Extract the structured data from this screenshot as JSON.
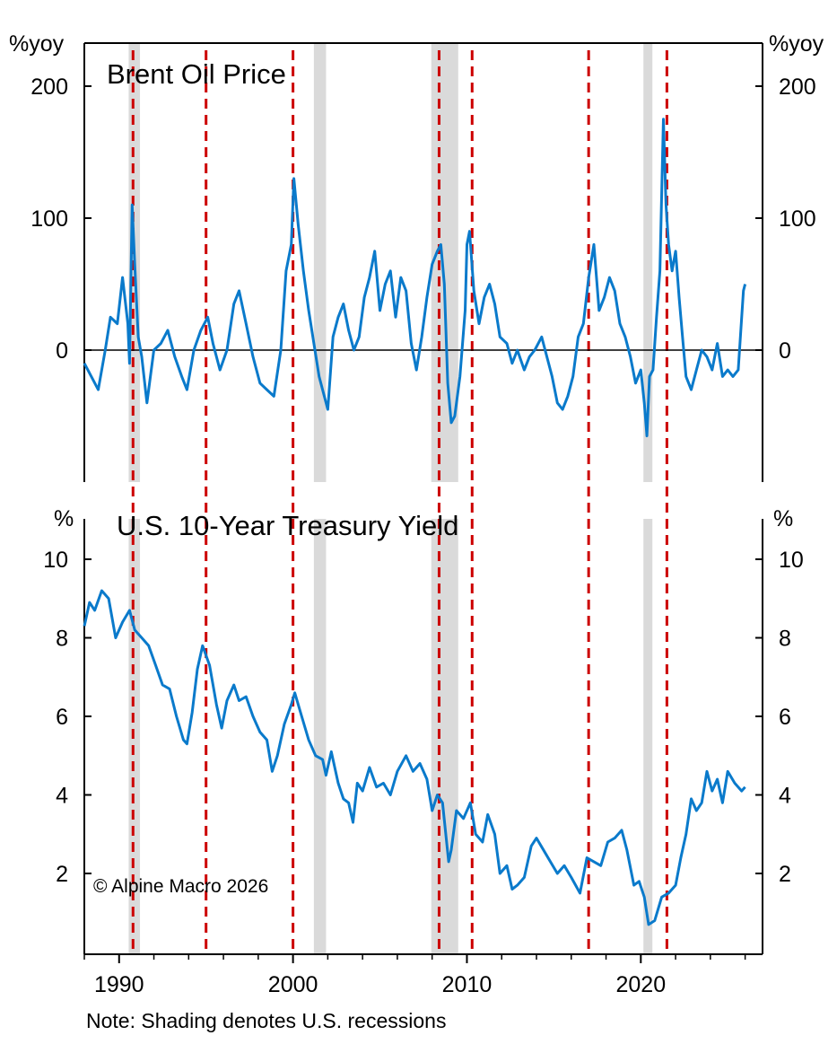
{
  "chart_data": [
    {
      "type": "line",
      "title": "Brent Oil Price",
      "unit_left": "%yoy",
      "unit_right": "%yoy",
      "ylim": [
        -100,
        230
      ],
      "yticks": [
        0,
        100,
        200
      ],
      "zero_line": true,
      "series": [
        {
          "name": "",
          "color": "#0a7acb",
          "x": [
            1988.0,
            1988.4,
            1988.8,
            1989.2,
            1989.5,
            1989.9,
            1990.2,
            1990.5,
            1990.6,
            1990.75,
            1990.9,
            1991.1,
            1991.3,
            1991.6,
            1992.0,
            1992.4,
            1992.8,
            1993.2,
            1993.6,
            1993.9,
            1994.3,
            1994.7,
            1995.1,
            1995.4,
            1995.8,
            1996.2,
            1996.6,
            1996.9,
            1997.3,
            1997.7,
            1998.1,
            1998.5,
            1998.9,
            1999.3,
            1999.6,
            1999.9,
            2000.05,
            2000.3,
            2000.6,
            2000.9,
            2001.2,
            2001.5,
            2001.8,
            2002.0,
            2002.3,
            2002.6,
            2002.9,
            2003.2,
            2003.5,
            2003.8,
            2004.1,
            2004.4,
            2004.7,
            2005.0,
            2005.3,
            2005.6,
            2005.9,
            2006.2,
            2006.5,
            2006.8,
            2007.1,
            2007.4,
            2007.7,
            2008.0,
            2008.3,
            2008.5,
            2008.7,
            2008.9,
            2009.1,
            2009.3,
            2009.6,
            2009.9,
            2010.0,
            2010.15,
            2010.4,
            2010.7,
            2011.0,
            2011.3,
            2011.6,
            2011.9,
            2012.3,
            2012.6,
            2012.9,
            2013.3,
            2013.6,
            2013.9,
            2014.3,
            2014.6,
            2014.9,
            2015.2,
            2015.5,
            2015.8,
            2016.1,
            2016.4,
            2016.7,
            2017.0,
            2017.3,
            2017.6,
            2017.9,
            2018.2,
            2018.5,
            2018.8,
            2019.1,
            2019.4,
            2019.7,
            2020.0,
            2020.2,
            2020.35,
            2020.5,
            2020.7,
            2020.9,
            2021.1,
            2021.3,
            2021.45,
            2021.6,
            2021.8,
            2022.0,
            2022.2,
            2022.4,
            2022.6,
            2022.9,
            2023.2,
            2023.5,
            2023.8,
            2024.1,
            2024.4,
            2024.7,
            2025.0,
            2025.3,
            2025.6,
            2025.9,
            2026.0
          ],
          "values": [
            -10,
            -20,
            -30,
            0,
            25,
            20,
            55,
            20,
            -10,
            110,
            65,
            10,
            -5,
            -40,
            0,
            5,
            15,
            -5,
            -20,
            -30,
            0,
            15,
            25,
            5,
            -15,
            0,
            35,
            45,
            20,
            -5,
            -25,
            -30,
            -35,
            0,
            60,
            80,
            130,
            95,
            60,
            30,
            5,
            -20,
            -35,
            -45,
            10,
            25,
            35,
            15,
            0,
            10,
            40,
            55,
            75,
            30,
            50,
            60,
            25,
            55,
            45,
            5,
            -15,
            10,
            40,
            65,
            75,
            80,
            50,
            -25,
            -55,
            -50,
            -20,
            30,
            80,
            90,
            45,
            20,
            40,
            50,
            35,
            10,
            5,
            -10,
            0,
            -15,
            -5,
            0,
            10,
            -5,
            -20,
            -40,
            -45,
            -35,
            -20,
            10,
            20,
            55,
            80,
            30,
            40,
            55,
            45,
            20,
            10,
            -5,
            -25,
            -15,
            -40,
            -65,
            -20,
            -15,
            25,
            60,
            175,
            110,
            80,
            60,
            75,
            40,
            10,
            -20,
            -30,
            -15,
            0,
            -5,
            -15,
            5,
            -20,
            -15,
            -20,
            -15,
            45,
            50
          ]
        }
      ]
    },
    {
      "type": "line",
      "title": "U.S. 10-Year Treasury Yield",
      "unit_left": "%",
      "unit_right": "%",
      "ylim": [
        0,
        11
      ],
      "yticks": [
        2,
        4,
        6,
        8,
        10
      ],
      "xlim": [
        1988,
        2027
      ],
      "xticks": [
        1990,
        2000,
        2010,
        2020
      ],
      "series": [
        {
          "name": "",
          "color": "#0a7acb",
          "x": [
            1988.0,
            1988.3,
            1988.6,
            1989.0,
            1989.4,
            1989.8,
            1990.2,
            1990.6,
            1990.9,
            1991.3,
            1991.7,
            1992.1,
            1992.5,
            1992.9,
            1993.3,
            1993.7,
            1993.9,
            1994.2,
            1994.5,
            1994.8,
            1995.2,
            1995.6,
            1995.9,
            1996.2,
            1996.6,
            1996.9,
            1997.3,
            1997.7,
            1998.1,
            1998.5,
            1998.8,
            1999.1,
            1999.5,
            1999.9,
            2000.1,
            2000.5,
            2000.9,
            2001.3,
            2001.7,
            2001.9,
            2002.2,
            2002.6,
            2002.9,
            2003.2,
            2003.45,
            2003.7,
            2004.0,
            2004.4,
            2004.8,
            2005.2,
            2005.6,
            2006.0,
            2006.5,
            2006.9,
            2007.3,
            2007.7,
            2008.0,
            2008.3,
            2008.6,
            2008.95,
            2009.1,
            2009.4,
            2009.8,
            2010.2,
            2010.5,
            2010.9,
            2011.2,
            2011.6,
            2011.9,
            2012.3,
            2012.6,
            2012.9,
            2013.3,
            2013.7,
            2014.0,
            2014.4,
            2014.8,
            2015.2,
            2015.6,
            2016.0,
            2016.5,
            2016.9,
            2017.3,
            2017.7,
            2018.1,
            2018.5,
            2018.9,
            2019.2,
            2019.6,
            2019.9,
            2020.2,
            2020.45,
            2020.8,
            2021.2,
            2021.6,
            2022.0,
            2022.3,
            2022.6,
            2022.9,
            2023.2,
            2023.5,
            2023.8,
            2024.1,
            2024.4,
            2024.7,
            2025.0,
            2025.4,
            2025.8,
            2026.0
          ],
          "values": [
            8.3,
            8.9,
            8.7,
            9.2,
            9.0,
            8.0,
            8.4,
            8.7,
            8.2,
            8.0,
            7.8,
            7.3,
            6.8,
            6.7,
            6.0,
            5.4,
            5.3,
            6.1,
            7.2,
            7.8,
            7.3,
            6.3,
            5.7,
            6.4,
            6.8,
            6.4,
            6.5,
            6.0,
            5.6,
            5.4,
            4.6,
            5.0,
            5.8,
            6.3,
            6.6,
            6.0,
            5.4,
            5.0,
            4.9,
            4.5,
            5.1,
            4.3,
            3.9,
            3.8,
            3.3,
            4.3,
            4.1,
            4.7,
            4.2,
            4.3,
            4.0,
            4.6,
            5.0,
            4.6,
            4.8,
            4.4,
            3.6,
            4.0,
            3.8,
            2.3,
            2.6,
            3.6,
            3.4,
            3.8,
            3.0,
            2.8,
            3.5,
            3.0,
            2.0,
            2.2,
            1.6,
            1.7,
            1.9,
            2.7,
            2.9,
            2.6,
            2.3,
            2.0,
            2.2,
            1.9,
            1.5,
            2.4,
            2.3,
            2.2,
            2.8,
            2.9,
            3.1,
            2.6,
            1.7,
            1.8,
            1.4,
            0.7,
            0.8,
            1.4,
            1.5,
            1.7,
            2.4,
            3.0,
            3.9,
            3.6,
            3.8,
            4.6,
            4.1,
            4.4,
            3.8,
            4.6,
            4.3,
            4.1,
            4.2
          ]
        }
      ]
    }
  ],
  "shared": {
    "recessions": [
      [
        1990.55,
        1991.2
      ],
      [
        2001.2,
        2001.9
      ],
      [
        2007.95,
        2009.5
      ],
      [
        2020.15,
        2020.4
      ]
    ],
    "red_lines": [
      1990.8,
      1995.0,
      2000.0,
      2008.4,
      2010.3,
      2017.0,
      2021.5
    ],
    "recession_color": "#dadada",
    "red_line_color": "#cc0000"
  },
  "copyright": "© Alpine Macro 2026",
  "note": "Note: Shading denotes U.S. recessions"
}
